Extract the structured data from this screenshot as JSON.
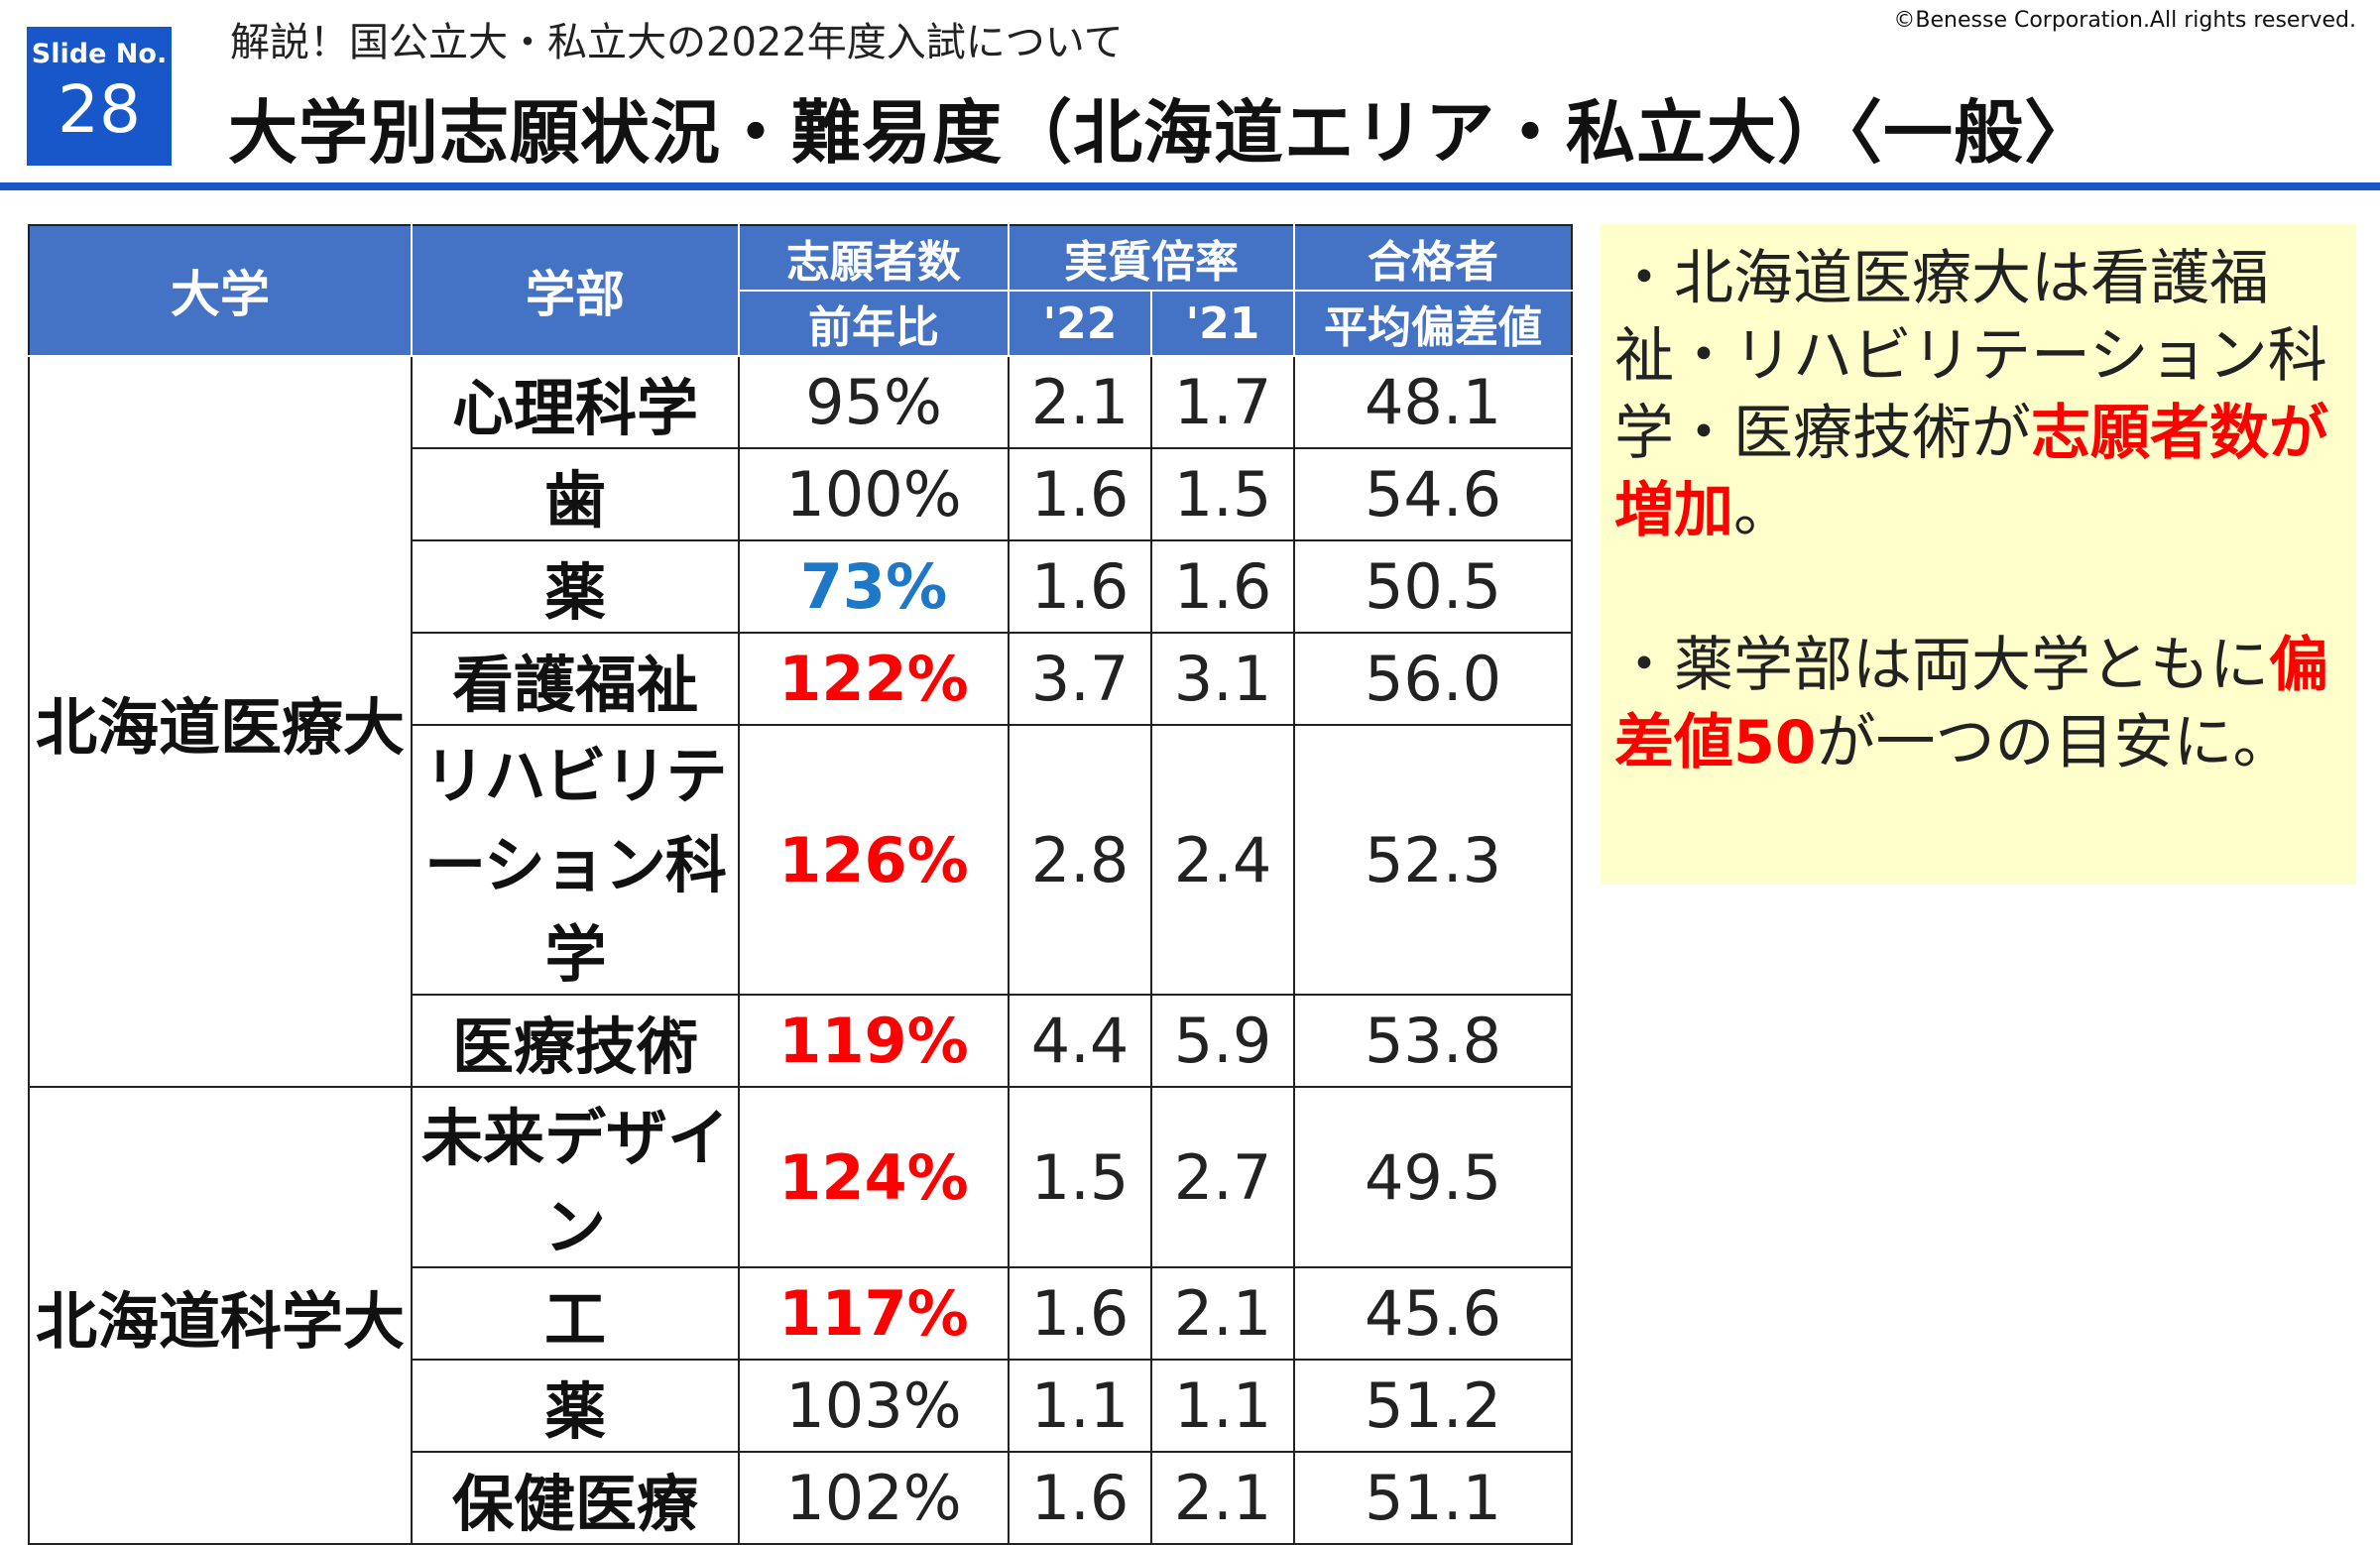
{
  "slide": {
    "label": "Slide No.",
    "number": "28"
  },
  "header": {
    "subtitle": "解説！国公立大・私立大の2022年度入試について",
    "title": "大学別志願状況・難易度（北海道エリア・私立大）〈一般〉",
    "copyright": "©Benesse Corporation.All rights reserved."
  },
  "table": {
    "headers": {
      "univ": "大学",
      "faculty": "学部",
      "applicants_line1": "志願者数",
      "applicants_line2": "前年比",
      "ratio": "実質倍率",
      "ratio_22": "'22",
      "ratio_21": "'21",
      "pass_line1": "合格者",
      "pass_line2": "平均偏差値"
    },
    "groups": [
      {
        "university": "北海道医療大",
        "rows": [
          {
            "faculty": "心理科学",
            "change": "95%",
            "ratio_22": "2.1",
            "ratio_21": "1.7",
            "deviation": "48.1"
          },
          {
            "faculty": "歯",
            "change": "100%",
            "ratio_22": "1.6",
            "ratio_21": "1.5",
            "deviation": "54.6"
          },
          {
            "faculty": "薬",
            "change": "73%",
            "ratio_22": "1.6",
            "ratio_21": "1.6",
            "deviation": "50.5"
          },
          {
            "faculty": "看護福祉",
            "change": "122%",
            "ratio_22": "3.7",
            "ratio_21": "3.1",
            "deviation": "56.0"
          },
          {
            "faculty": "リハビリテーション科学",
            "change": "126%",
            "ratio_22": "2.8",
            "ratio_21": "2.4",
            "deviation": "52.3"
          },
          {
            "faculty": "医療技術",
            "change": "119%",
            "ratio_22": "4.4",
            "ratio_21": "5.9",
            "deviation": "53.8"
          }
        ]
      },
      {
        "university": "北海道科学大",
        "rows": [
          {
            "faculty": "未来デザイン",
            "change": "124%",
            "ratio_22": "1.5",
            "ratio_21": "2.7",
            "deviation": "49.5"
          },
          {
            "faculty": "工",
            "change": "117%",
            "ratio_22": "1.6",
            "ratio_21": "2.1",
            "deviation": "45.6"
          },
          {
            "faculty": "薬",
            "change": "103%",
            "ratio_22": "1.1",
            "ratio_21": "1.1",
            "deviation": "51.2"
          },
          {
            "faculty": "保健医療",
            "change": "102%",
            "ratio_22": "1.6",
            "ratio_21": "2.1",
            "deviation": "51.1"
          }
        ]
      }
    ]
  },
  "notes": {
    "p1_a": "・北海道医療大は看護福祉・リハビリテーション科学・医療技術が",
    "p1_red": "志願者数が増加",
    "p1_b": "。",
    "p2_a": "・薬学部は両大学ともに",
    "p2_red": "偏差値50",
    "p2_b": "が一つの目安に。"
  },
  "colors": {
    "brand_blue": "#1857c9",
    "header_blue": "#4472c4",
    "increase_red": "#ff0000",
    "decrease_blue": "#1e78c8",
    "note_bg": "#ffffcc"
  }
}
